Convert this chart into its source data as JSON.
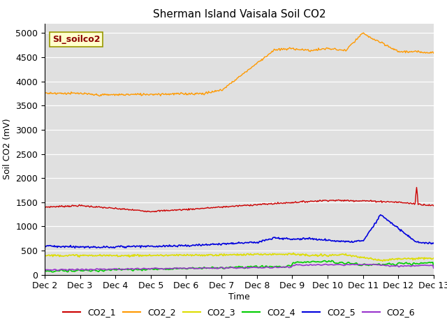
{
  "title": "Sherman Island Vaisala Soil CO2",
  "ylabel": "Soil CO2 (mV)",
  "xlabel": "Time",
  "annotation": "SI_soilco2",
  "x_tick_labels": [
    "Dec 2",
    "Dec 3",
    "Dec 4",
    "Dec 5",
    "Dec 6",
    "Dec 7",
    "Dec 8",
    "Dec 9",
    "Dec 10",
    "Dec 11",
    "Dec 12",
    "Dec 13"
  ],
  "ylim": [
    0,
    5200
  ],
  "yticks": [
    0,
    500,
    1000,
    1500,
    2000,
    2500,
    3000,
    3500,
    4000,
    4500,
    5000
  ],
  "background_color": "#e0e0e0",
  "line_colors": {
    "CO2_1": "#cc0000",
    "CO2_2": "#ff9900",
    "CO2_3": "#dddd00",
    "CO2_4": "#00cc00",
    "CO2_5": "#0000dd",
    "CO2_6": "#9933cc"
  },
  "n_days": 11,
  "pts_per_day": 48,
  "figsize": [
    6.4,
    4.8
  ],
  "dpi": 100
}
